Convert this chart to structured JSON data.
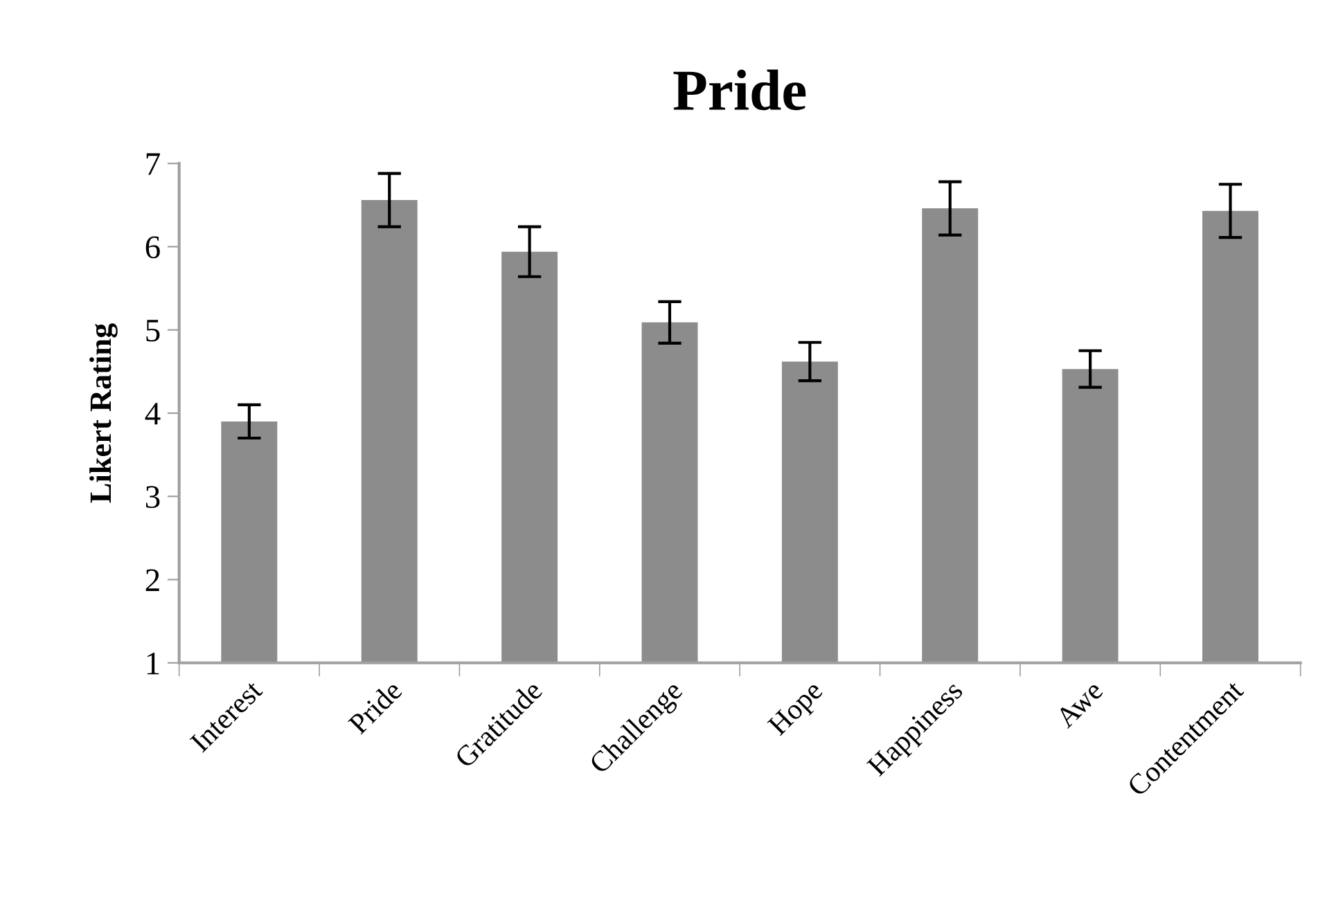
{
  "chart_data": {
    "type": "bar",
    "title": "Pride",
    "ylabel": "Likert Rating",
    "categories": [
      "Interest",
      "Pride",
      "Gratitude",
      "Challenge",
      "Hope",
      "Happiness",
      "Awe",
      "Contentment"
    ],
    "values": [
      3.9,
      6.56,
      5.94,
      5.09,
      4.62,
      6.46,
      4.53,
      6.43
    ],
    "errors": [
      0.2,
      0.32,
      0.3,
      0.25,
      0.23,
      0.32,
      0.22,
      0.32
    ],
    "color": "#8c8c8c",
    "ylim": [
      1,
      7
    ],
    "yticks": [
      1,
      2,
      3,
      4,
      5,
      6,
      7
    ],
    "grid": false,
    "legend": false
  }
}
